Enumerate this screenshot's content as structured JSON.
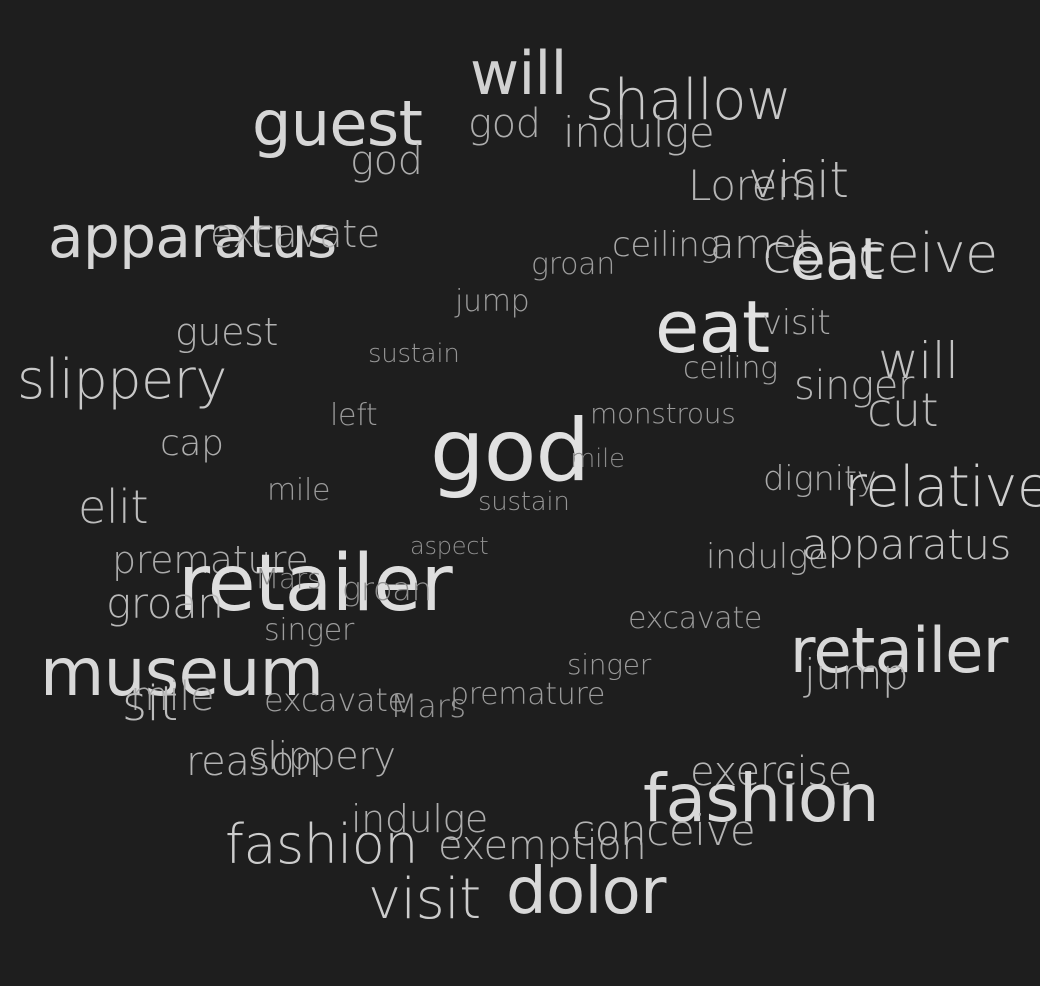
{
  "words": [
    {
      "text": "will",
      "weight": 0.86
    },
    {
      "text": "shallow",
      "weight": 0.78
    },
    {
      "text": "guest",
      "weight": 0.9
    },
    {
      "text": "god",
      "weight": 0.55
    },
    {
      "text": "indulge",
      "weight": 0.62
    },
    {
      "text": "god",
      "weight": 0.55
    },
    {
      "text": "visit",
      "weight": 0.7
    },
    {
      "text": "Lorem",
      "weight": 0.62
    },
    {
      "text": "apparatus",
      "weight": 0.9
    },
    {
      "text": "excavate",
      "weight": 0.55
    },
    {
      "text": "ceiling",
      "weight": 0.52
    },
    {
      "text": "amet",
      "weight": 0.58
    },
    {
      "text": "conceive",
      "weight": 0.78
    },
    {
      "text": "eat",
      "weight": 0.95
    },
    {
      "text": "groan",
      "weight": 0.4
    },
    {
      "text": "jump",
      "weight": 0.42
    },
    {
      "text": "eat",
      "weight": 1.0
    },
    {
      "text": "visit",
      "weight": 0.52
    },
    {
      "text": "guest",
      "weight": 0.58
    },
    {
      "text": "sustain",
      "weight": 0.35
    },
    {
      "text": "ceiling",
      "weight": 0.46
    },
    {
      "text": "will",
      "weight": 0.72
    },
    {
      "text": "slippery",
      "weight": 0.78
    },
    {
      "text": "singer",
      "weight": 0.62
    },
    {
      "text": "left",
      "weight": 0.38
    },
    {
      "text": "monstrous",
      "weight": 0.38
    },
    {
      "text": "cut",
      "weight": 0.64
    },
    {
      "text": "cap",
      "weight": 0.55
    },
    {
      "text": "god",
      "weight": 1.0
    },
    {
      "text": "mile",
      "weight": 0.25
    },
    {
      "text": "dignity",
      "weight": 0.52
    },
    {
      "text": "relative",
      "weight": 0.84
    },
    {
      "text": "elit",
      "weight": 0.68
    },
    {
      "text": "mile",
      "weight": 0.38
    },
    {
      "text": "sustain",
      "weight": 0.35
    },
    {
      "text": "aspect",
      "weight": 0.3
    },
    {
      "text": "premature",
      "weight": 0.52
    },
    {
      "text": "indulge",
      "weight": 0.52
    },
    {
      "text": "apparatus",
      "weight": 0.72
    },
    {
      "text": "retailer",
      "weight": 0.97
    },
    {
      "text": "Mars",
      "weight": 0.25
    },
    {
      "text": "groan",
      "weight": 0.3
    },
    {
      "text": "groan",
      "weight": 0.65
    },
    {
      "text": "singer",
      "weight": 0.4
    },
    {
      "text": "excavate",
      "weight": 0.4
    },
    {
      "text": "retailer",
      "weight": 0.92
    },
    {
      "text": "museum",
      "weight": 0.92
    },
    {
      "text": "singer",
      "weight": 0.38
    },
    {
      "text": "jump",
      "weight": 0.6
    },
    {
      "text": "mile",
      "weight": 0.5
    },
    {
      "text": "sit",
      "weight": 0.68
    },
    {
      "text": "excavate",
      "weight": 0.42
    },
    {
      "text": "Mars",
      "weight": 0.35
    },
    {
      "text": "premature",
      "weight": 0.4
    },
    {
      "text": "reason",
      "weight": 0.6
    },
    {
      "text": "slippery",
      "weight": 0.55
    },
    {
      "text": "exercise",
      "weight": 0.62
    },
    {
      "text": "fashion",
      "weight": 0.92
    },
    {
      "text": "indulge",
      "weight": 0.55
    },
    {
      "text": "conceive",
      "weight": 0.6
    },
    {
      "text": "fashion",
      "weight": 0.82
    },
    {
      "text": "exemption",
      "weight": 0.6
    },
    {
      "text": "visit",
      "weight": 0.82
    },
    {
      "text": "dolor",
      "weight": 0.92
    }
  ]
}
